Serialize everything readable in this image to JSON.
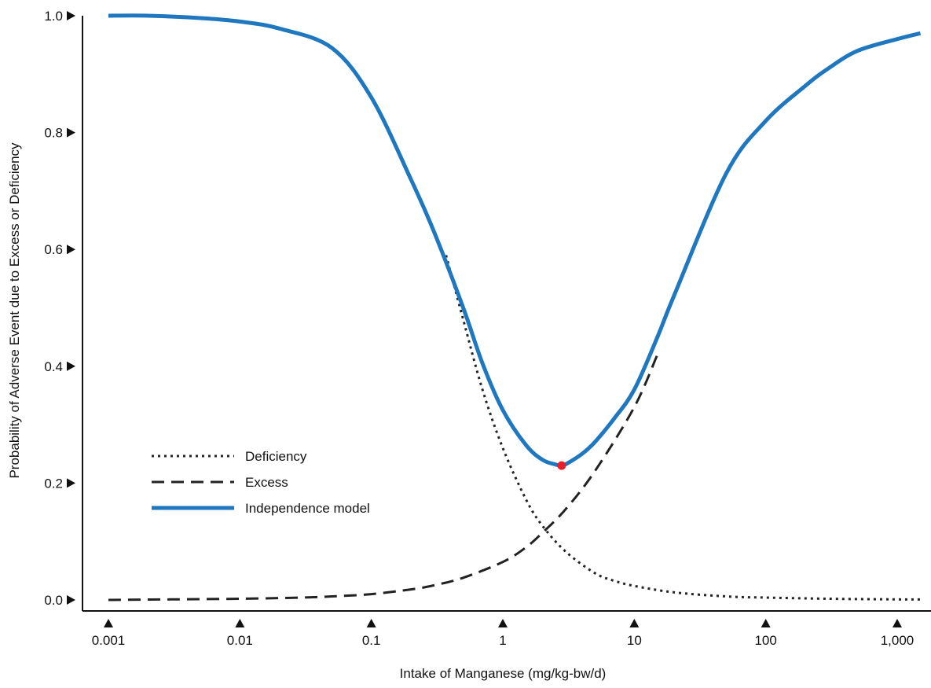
{
  "chart_data": {
    "type": "line",
    "title": "",
    "xlabel": "Intake of Manganese (mg/kg-bw/d)",
    "ylabel": "Probability of Adverse Event due to Excess or Deficiency",
    "xscale": "log",
    "xlim": [
      0.001,
      1500
    ],
    "ylim": [
      0.0,
      1.0
    ],
    "grid": false,
    "legend_position": "left-middle",
    "x_ticks": [
      {
        "value": 0.001,
        "label": "0.001"
      },
      {
        "value": 0.01,
        "label": "0.01"
      },
      {
        "value": 0.1,
        "label": "0.1"
      },
      {
        "value": 1,
        "label": "1"
      },
      {
        "value": 10,
        "label": "10"
      },
      {
        "value": 100,
        "label": "100"
      },
      {
        "value": 1000,
        "label": "1,000"
      }
    ],
    "y_ticks": [
      {
        "value": 0.0,
        "label": "0.0"
      },
      {
        "value": 0.2,
        "label": "0.2"
      },
      {
        "value": 0.4,
        "label": "0.4"
      },
      {
        "value": 0.6,
        "label": "0.6"
      },
      {
        "value": 0.8,
        "label": "0.8"
      },
      {
        "value": 1.0,
        "label": "1.0"
      }
    ],
    "series": [
      {
        "name": "Deficiency",
        "style": "dotted",
        "color": "#222222",
        "x": [
          0.37,
          0.5,
          0.7,
          1.0,
          1.5,
          2.0,
          3.0,
          5.0,
          7.0,
          10,
          20,
          50,
          100,
          300,
          1000,
          1500
        ],
        "y": [
          0.59,
          0.48,
          0.36,
          0.26,
          0.172,
          0.127,
          0.083,
          0.046,
          0.033,
          0.024,
          0.013,
          0.006,
          0.004,
          0.002,
          0.001,
          0.0008
        ]
      },
      {
        "name": "Excess",
        "style": "dashed",
        "color": "#222222",
        "x": [
          0.001,
          0.003,
          0.01,
          0.03,
          0.05,
          0.1,
          0.2,
          0.3,
          0.5,
          1.0,
          1.5,
          2.0,
          3.0,
          5.0,
          10,
          15
        ],
        "y": [
          0.0,
          0.001,
          0.002,
          0.004,
          0.006,
          0.01,
          0.018,
          0.025,
          0.038,
          0.065,
          0.09,
          0.115,
          0.155,
          0.22,
          0.33,
          0.42
        ]
      },
      {
        "name": "Independence model",
        "style": "solid",
        "color": "#1f77c0",
        "x": [
          0.001,
          0.002,
          0.005,
          0.01,
          0.02,
          0.05,
          0.1,
          0.2,
          0.3,
          0.5,
          0.7,
          1.0,
          1.5,
          2.0,
          2.5,
          2.8,
          3.0,
          4.0,
          5.0,
          7.0,
          10,
          15,
          20,
          50,
          100,
          200,
          300,
          500,
          1000,
          1500
        ],
        "y": [
          1.0,
          1.0,
          0.996,
          0.99,
          0.978,
          0.945,
          0.86,
          0.72,
          0.63,
          0.5,
          0.405,
          0.325,
          0.265,
          0.24,
          0.232,
          0.23,
          0.232,
          0.25,
          0.27,
          0.31,
          0.36,
          0.45,
          0.52,
          0.73,
          0.82,
          0.88,
          0.91,
          0.94,
          0.96,
          0.97
        ]
      }
    ],
    "marker": {
      "x": 2.8,
      "y": 0.23,
      "color": "#e8202a"
    },
    "axis_arrow_glyph": "▶ ▲"
  }
}
